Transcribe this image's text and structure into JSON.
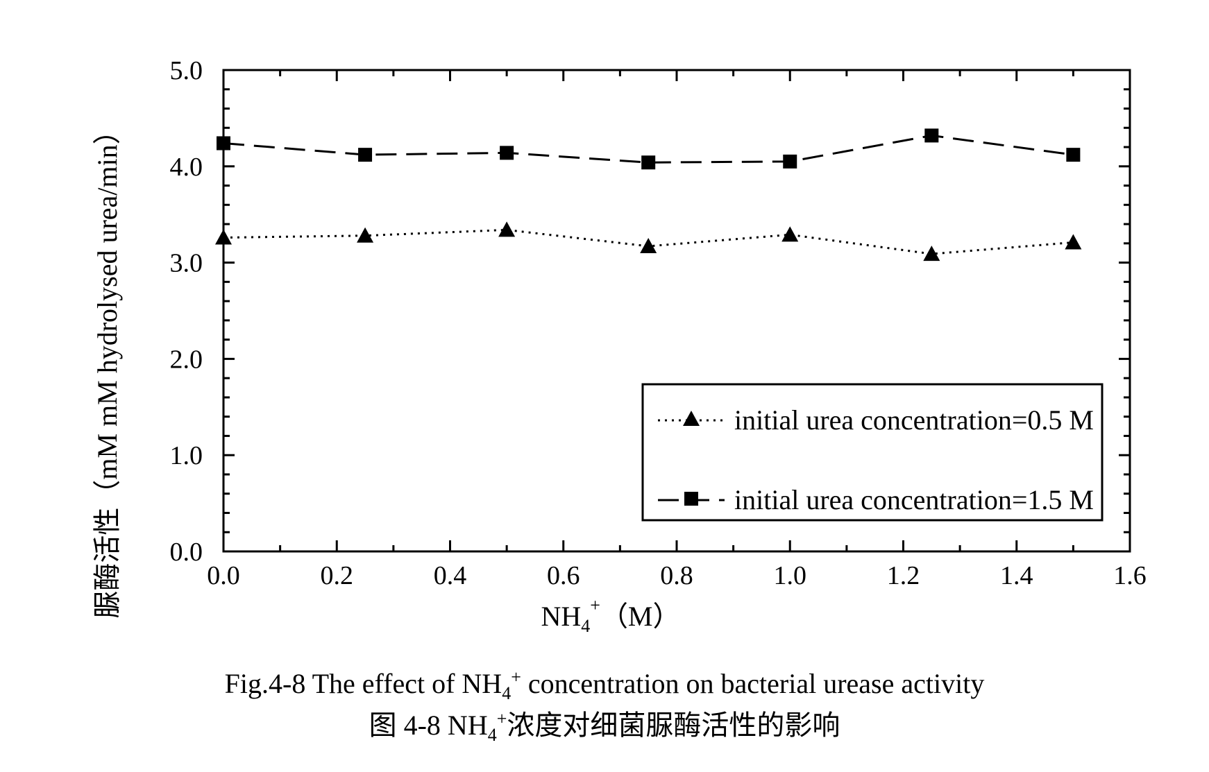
{
  "chart_data": {
    "type": "line",
    "x": [
      0.0,
      0.25,
      0.5,
      0.75,
      1.0,
      1.25,
      1.5
    ],
    "series": [
      {
        "name": "initial urea concentration=0.5 M",
        "marker": "triangle",
        "line_style": "dotted",
        "values": [
          3.26,
          3.28,
          3.34,
          3.17,
          3.29,
          3.09,
          3.21
        ]
      },
      {
        "name": "initial urea concentration=1.5 M",
        "marker": "square",
        "line_style": "dashed",
        "values": [
          4.24,
          4.12,
          4.14,
          4.04,
          4.05,
          4.32,
          4.12
        ]
      }
    ],
    "xlim": [
      0.0,
      1.6
    ],
    "ylim": [
      0.0,
      5.0
    ],
    "x_ticks": [
      "0.0",
      "0.2",
      "0.4",
      "0.6",
      "0.8",
      "1.0",
      "1.2",
      "1.4",
      "1.6"
    ],
    "y_ticks": [
      "0.0",
      "1.0",
      "2.0",
      "3.0",
      "4.0",
      "5.0"
    ],
    "xlabel": {
      "base": "NH",
      "sub": "4",
      "sup": "+",
      "unit": "（M）"
    },
    "ylabel": "脲酶活性（mM mM hydrolysed urea/min）",
    "legend_position": "bottom-right",
    "grid": false
  },
  "caption": {
    "en_prefix": "Fig.4-8 The effect of NH",
    "en_sub": "4",
    "en_sup": "+",
    "en_suffix": " concentration on bacterial urease activity",
    "zh_prefix": "图 4-8 NH",
    "zh_sub": "4",
    "zh_sup": "+",
    "zh_suffix": "浓度对细菌脲酶活性的影响"
  }
}
